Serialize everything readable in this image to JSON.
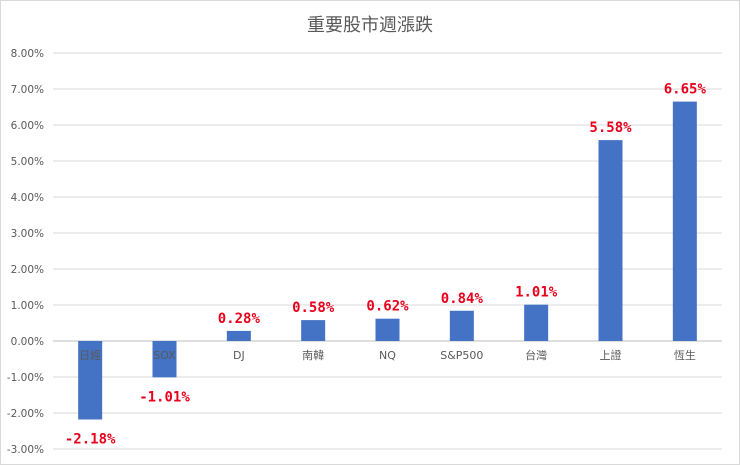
{
  "chart_data": {
    "type": "bar",
    "title": "重要股市週漲跌",
    "xlabel": "",
    "ylabel": "",
    "categories": [
      "日經",
      "SOX",
      "DJ",
      "南韓",
      "NQ",
      "S&P500",
      "台灣",
      "上證",
      "恆生"
    ],
    "values": [
      -2.18,
      -1.01,
      0.28,
      0.58,
      0.62,
      0.84,
      1.01,
      5.58,
      6.65
    ],
    "data_labels": [
      "-2.18%",
      "-1.01%",
      "0.28%",
      "0.58%",
      "0.62%",
      "0.84%",
      "1.01%",
      "5.58%",
      "6.65%"
    ],
    "ylim": [
      -3,
      8
    ],
    "yticks": [
      8,
      7,
      6,
      5,
      4,
      3,
      2,
      1,
      0,
      -1,
      -2,
      -3
    ],
    "ytick_labels": [
      "8.00%",
      "7.00%",
      "6.00%",
      "5.00%",
      "4.00%",
      "3.00%",
      "2.00%",
      "1.00%",
      "0.00%",
      "-1.00%",
      "-2.00%",
      "-3.00%"
    ],
    "grid": true,
    "legend": "none",
    "colors": {
      "bar": "#4472c4",
      "data_label": "#e8001c",
      "grid": "#d9d9d9",
      "text": "#595959"
    }
  }
}
